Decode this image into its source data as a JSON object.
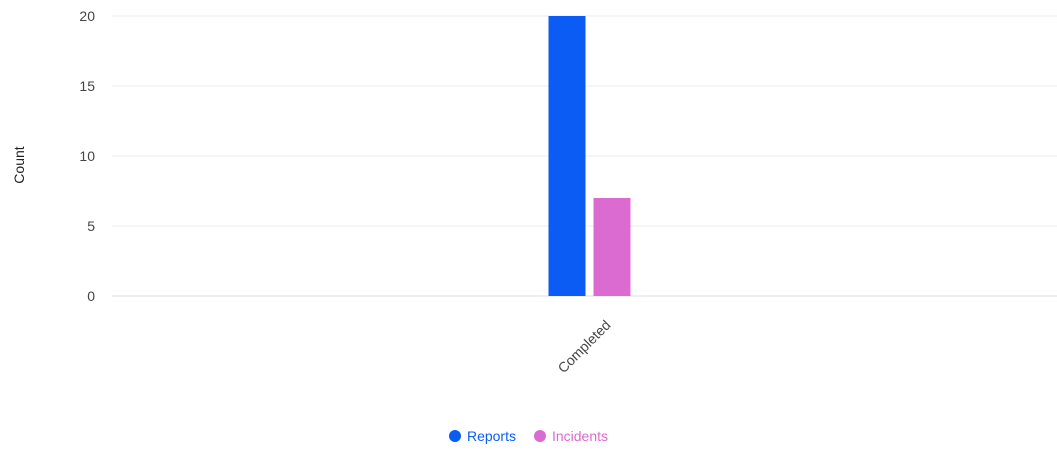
{
  "chart_data": {
    "type": "bar",
    "title": "",
    "xlabel": "",
    "ylabel": "Count",
    "categories": [
      "Completed"
    ],
    "series": [
      {
        "name": "Reports",
        "values": [
          20
        ],
        "color": "#0a5cf5"
      },
      {
        "name": "Incidents",
        "values": [
          7
        ],
        "color": "#db6bd0"
      }
    ],
    "ylim": [
      0,
      20
    ],
    "yticks": [
      0,
      5,
      10,
      15,
      20
    ],
    "grid": true,
    "legend_position": "bottom-center",
    "x_tick_rotation": "-45"
  }
}
